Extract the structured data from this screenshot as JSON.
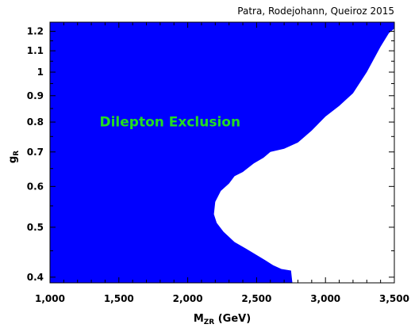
{
  "chart_data": {
    "type": "area",
    "credit": "Patra, Rodejohann, Queiroz 2015",
    "xlabel": {
      "main": "M",
      "sub": "ZR",
      "suffix": " (GeV)"
    },
    "ylabel": {
      "main": "g",
      "sub": "R"
    },
    "xlim": [
      1000,
      3500
    ],
    "ylim": [
      0.39,
      1.25
    ],
    "yscale": "log",
    "x_ticks": [
      1000,
      1500,
      2000,
      2500,
      3000,
      3500
    ],
    "x_tick_labels": [
      "1,000",
      "1,500",
      "2,000",
      "2,500",
      "3,000",
      "3,500"
    ],
    "x_minor_ticks": [
      1100,
      1200,
      1300,
      1400,
      1600,
      1700,
      1800,
      1900,
      2100,
      2200,
      2300,
      2400,
      2600,
      2700,
      2800,
      2900,
      3100,
      3200,
      3300,
      3400
    ],
    "y_ticks": [
      0.4,
      0.5,
      0.6,
      0.7,
      0.8,
      0.9,
      1.0,
      1.1,
      1.2
    ],
    "y_tick_labels": [
      "0.4",
      "0.5",
      "0.6",
      "0.7",
      "0.8",
      "0.9",
      "1",
      "1.1",
      "1.2"
    ],
    "y_minor_ticks": [
      0.45,
      0.55,
      0.65,
      0.75,
      0.85,
      0.95,
      1.05,
      1.15
    ],
    "region": {
      "name": "Dilepton Exclusion",
      "fill": "#0000ff",
      "boundary": [
        {
          "x": 3500,
          "y": 1.25
        },
        {
          "x": 3500,
          "y": 1.215
        },
        {
          "x": 3460,
          "y": 1.19
        },
        {
          "x": 3400,
          "y": 1.12
        },
        {
          "x": 3300,
          "y": 1.0
        },
        {
          "x": 3200,
          "y": 0.91
        },
        {
          "x": 3100,
          "y": 0.86
        },
        {
          "x": 3000,
          "y": 0.82
        },
        {
          "x": 2900,
          "y": 0.77
        },
        {
          "x": 2800,
          "y": 0.73
        },
        {
          "x": 2700,
          "y": 0.71
        },
        {
          "x": 2600,
          "y": 0.7
        },
        {
          "x": 2550,
          "y": 0.682
        },
        {
          "x": 2480,
          "y": 0.665
        },
        {
          "x": 2400,
          "y": 0.64
        },
        {
          "x": 2340,
          "y": 0.628
        },
        {
          "x": 2300,
          "y": 0.608
        },
        {
          "x": 2240,
          "y": 0.588
        },
        {
          "x": 2200,
          "y": 0.56
        },
        {
          "x": 2190,
          "y": 0.53
        },
        {
          "x": 2210,
          "y": 0.51
        },
        {
          "x": 2260,
          "y": 0.49
        },
        {
          "x": 2340,
          "y": 0.468
        },
        {
          "x": 2420,
          "y": 0.455
        },
        {
          "x": 2480,
          "y": 0.445
        },
        {
          "x": 2560,
          "y": 0.432
        },
        {
          "x": 2620,
          "y": 0.422
        },
        {
          "x": 2680,
          "y": 0.415
        },
        {
          "x": 2750,
          "y": 0.412
        },
        {
          "x": 2760,
          "y": 0.39
        }
      ]
    },
    "annotation": {
      "text": "Dilepton Exclusion",
      "color": "#22dd22",
      "x": 1360,
      "y": 0.785
    },
    "grid": false
  }
}
